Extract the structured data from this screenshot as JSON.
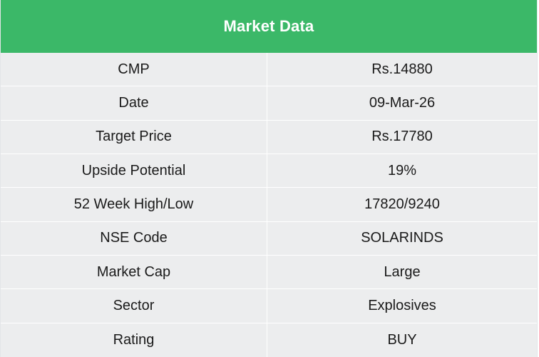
{
  "table": {
    "title": "Market Data",
    "rows": [
      {
        "label": "CMP",
        "value": "Rs.14880"
      },
      {
        "label": "Date",
        "value": "09-Mar-26"
      },
      {
        "label": "Target Price",
        "value": "Rs.17780"
      },
      {
        "label": "Upside Potential",
        "value": "19%"
      },
      {
        "label": "52 Week High/Low",
        "value": "17820/9240"
      },
      {
        "label": "NSE Code",
        "value": "SOLARINDS"
      },
      {
        "label": "Market Cap",
        "value": "Large"
      },
      {
        "label": "Sector",
        "value": "Explosives"
      },
      {
        "label": "Rating",
        "value": "BUY"
      }
    ]
  },
  "colors": {
    "header_bg": "#3bb868",
    "header_text": "#ffffff",
    "row_bg": "#ecedee",
    "text": "#1a1a1a"
  }
}
